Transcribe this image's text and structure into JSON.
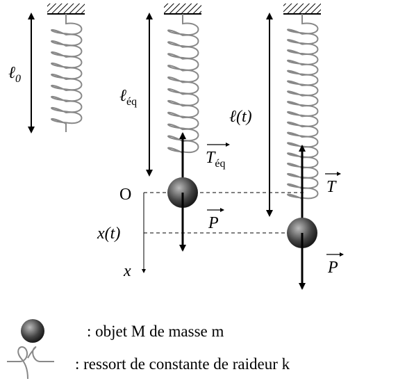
{
  "labels": {
    "l0": {
      "main": "ℓ",
      "sub": "0"
    },
    "leq": {
      "main": "ℓ",
      "sub": "éq"
    },
    "lt": "ℓ(t)",
    "teq": {
      "main": "T",
      "sub": "éq"
    },
    "t": "T",
    "p1": "P",
    "p2": "P",
    "origin": "O",
    "xt": "x(t)",
    "x": "x"
  },
  "legend": {
    "mass": ": objet M de masse m",
    "spring": ": ressort de constante de raideur k"
  }
}
